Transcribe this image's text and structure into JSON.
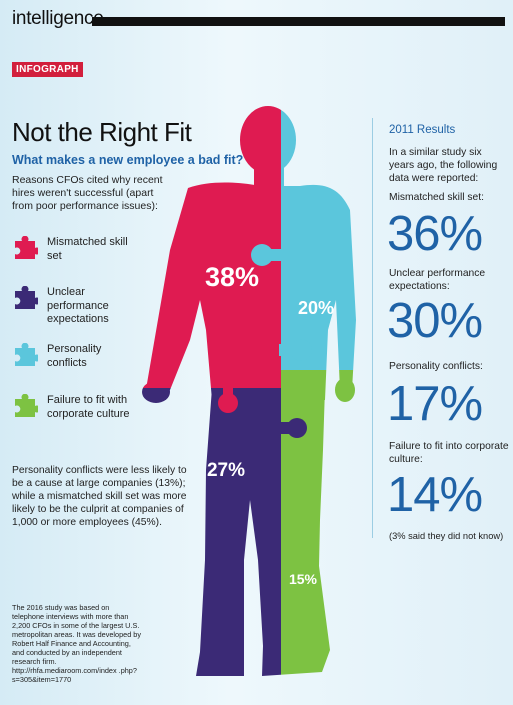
{
  "header": {
    "title": "intelligence"
  },
  "badge": "INFOGRAPH",
  "title": "Not the Right Fit",
  "subtitle": "What makes a new employee a bad fit?",
  "intro": "Reasons CFOs cited why recent hires weren't successful (apart from poor performance issues):",
  "legend": [
    {
      "label": "Mismatched skill set",
      "color": "#df1b51",
      "icon": "puzzle-piece-icon"
    },
    {
      "label": "Unclear performance expectations",
      "color": "#3b2a76",
      "icon": "puzzle-piece-icon"
    },
    {
      "label": "Personality conflicts",
      "color": "#5bc6dc",
      "icon": "puzzle-piece-icon"
    },
    {
      "label": "Failure to fit with corporate culture",
      "color": "#7dc242",
      "icon": "puzzle-piece-icon"
    }
  ],
  "figure": {
    "segments": [
      {
        "name": "Mismatched skill set",
        "value": "38%",
        "color": "#df1b51"
      },
      {
        "name": "Personality conflicts",
        "value": "20%",
        "color": "#5bc6dc"
      },
      {
        "name": "Unclear performance expectations",
        "value": "27%",
        "color": "#3b2a76"
      },
      {
        "name": "Failure to fit with corporate culture",
        "value": "15%",
        "color": "#7dc242"
      }
    ]
  },
  "note": "Personality conflicts were less likely to be a cause at large companies (13%); while a mismatched skill set was more likely to be the culprit at companies of 1,000 or more employees (45%).",
  "source": "The 2016 study was based on telephone interviews with more than 2,200 CFOs in some of the largest U.S. metropolitan areas. It was developed by Robert Half Finance and Accounting, and conducted by an independent research firm. http://rhfa.mediaroom.com/index .php?s=305&item=1770",
  "results": {
    "title": "2011 Results",
    "intro": "In a similar study six years ago, the following data were reported:",
    "items": [
      {
        "label": "Mismatched skill set:",
        "value": "36%"
      },
      {
        "label": "Unclear performance expectations:",
        "value": "30%"
      },
      {
        "label": "Personality conflicts:",
        "value": "17%"
      },
      {
        "label": "Failure to fit into corporate culture:",
        "value": "14%"
      }
    ],
    "footnote": "(3% said they did not know)"
  },
  "colors": {
    "accent": "#1f62a6",
    "badge": "#d21f3c",
    "background": "#e6f3f9"
  }
}
